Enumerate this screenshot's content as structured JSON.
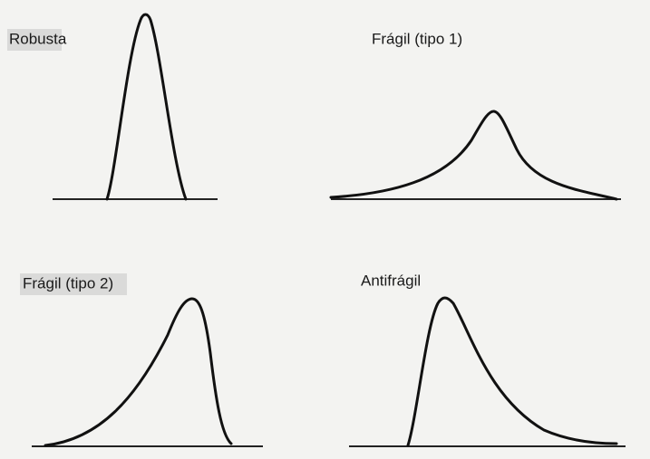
{
  "panels": [
    {
      "label": "Robusta"
    },
    {
      "label": "Frágil (tipo 1)"
    },
    {
      "label": "Frágil (tipo 2)"
    },
    {
      "label": "Antifrágil"
    }
  ]
}
